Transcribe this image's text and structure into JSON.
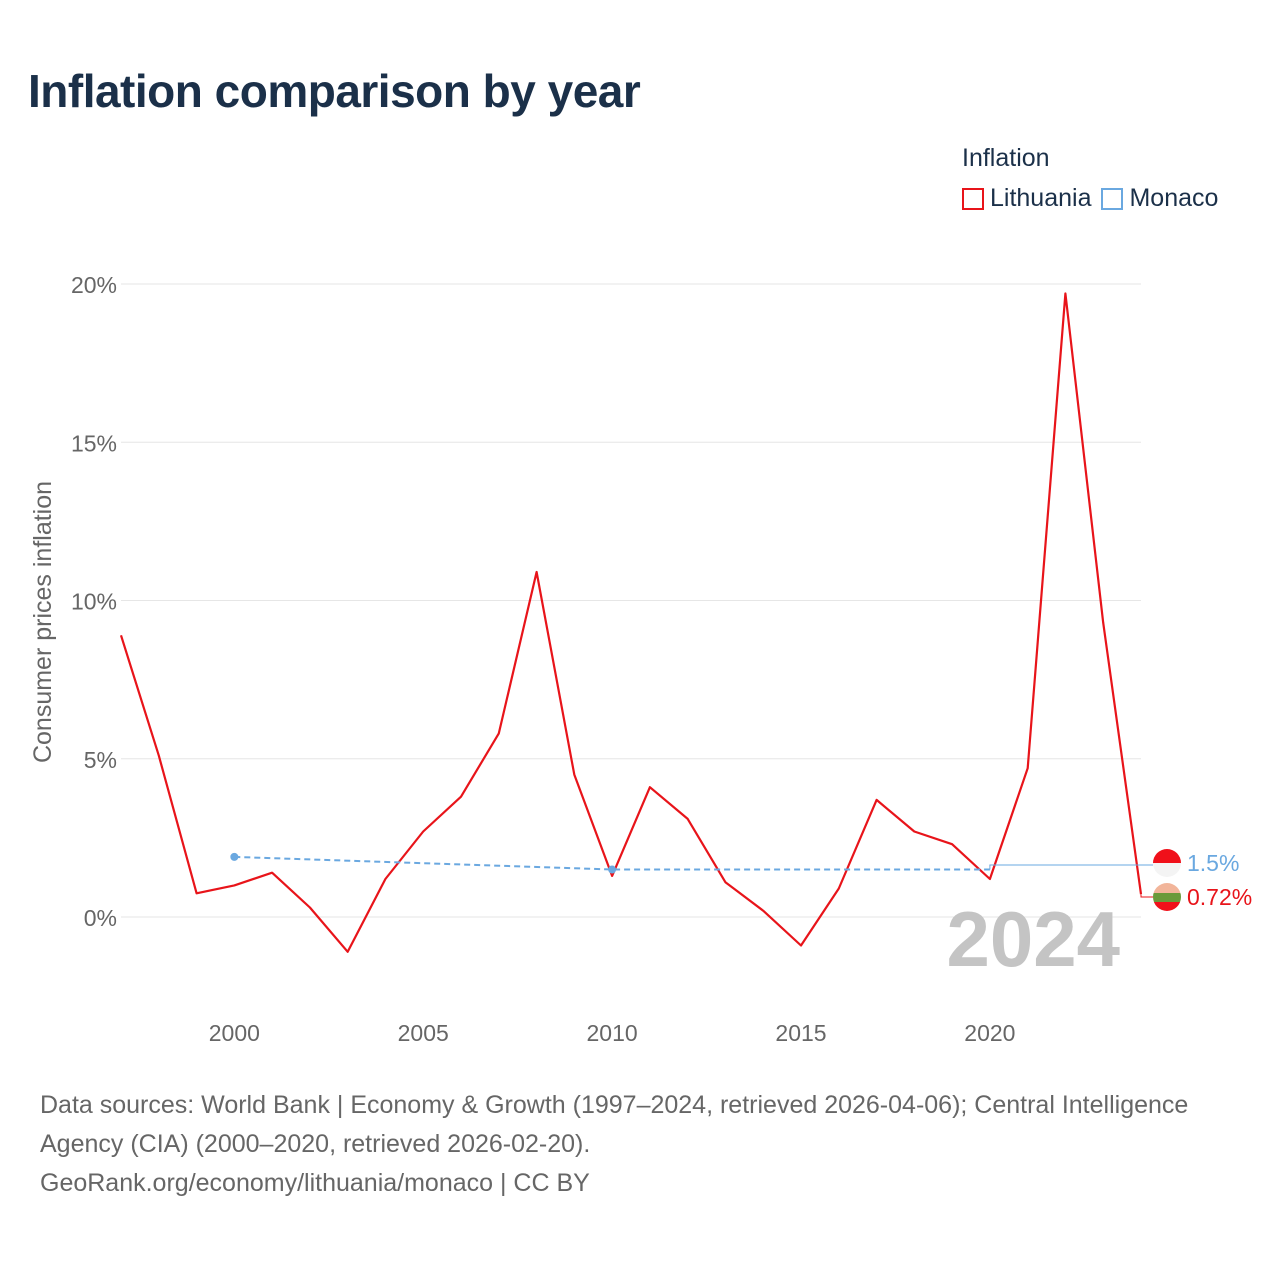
{
  "title": "Inflation comparison by year",
  "legend": {
    "title": "Inflation",
    "items": [
      {
        "label": "Lithuania",
        "color": "#e8141a"
      },
      {
        "label": "Monaco",
        "color": "#6aa8e0"
      }
    ]
  },
  "chart_data": {
    "type": "line",
    "title": "Inflation comparison by year",
    "xlabel": "",
    "ylabel": "Consumer prices inflation",
    "xlim": [
      1997,
      2024
    ],
    "ylim": [
      -3,
      20
    ],
    "x_ticks": [
      2000,
      2005,
      2010,
      2015,
      2020
    ],
    "y_ticks": [
      0,
      5,
      10,
      15,
      20
    ],
    "y_tick_labels": [
      "0%",
      "5%",
      "10%",
      "15%",
      "20%"
    ],
    "grid": true,
    "watermark_year": "2024",
    "series": [
      {
        "name": "Lithuania",
        "color": "#e8141a",
        "style": "solid",
        "x": [
          1997,
          1998,
          1999,
          2000,
          2001,
          2002,
          2003,
          2004,
          2005,
          2006,
          2007,
          2008,
          2009,
          2010,
          2011,
          2012,
          2013,
          2014,
          2015,
          2016,
          2017,
          2018,
          2019,
          2020,
          2021,
          2022,
          2023,
          2024
        ],
        "y": [
          8.9,
          5.1,
          0.75,
          1.0,
          1.4,
          0.3,
          -1.1,
          1.2,
          2.7,
          3.8,
          5.8,
          10.9,
          4.5,
          1.3,
          4.1,
          3.1,
          1.1,
          0.2,
          -0.9,
          0.9,
          3.7,
          2.7,
          2.3,
          1.2,
          4.7,
          19.7,
          9.3,
          0.72
        ],
        "end_label": "0.72%"
      },
      {
        "name": "Monaco",
        "color": "#6aa8e0",
        "style": "dashed",
        "x": [
          2000,
          2010,
          2018,
          2020
        ],
        "y": [
          1.9,
          1.5,
          1.5,
          1.5
        ],
        "end_label": "1.5%"
      }
    ]
  },
  "source": {
    "line1": "Data sources: World Bank | Economy & Growth (1997–2024, retrieved 2026-04-06); Central Intelligence Agency (CIA) (2000–2020, retrieved 2026-02-20).",
    "line2": "GeoRank.org/economy/lithuania/monaco | CC BY"
  }
}
